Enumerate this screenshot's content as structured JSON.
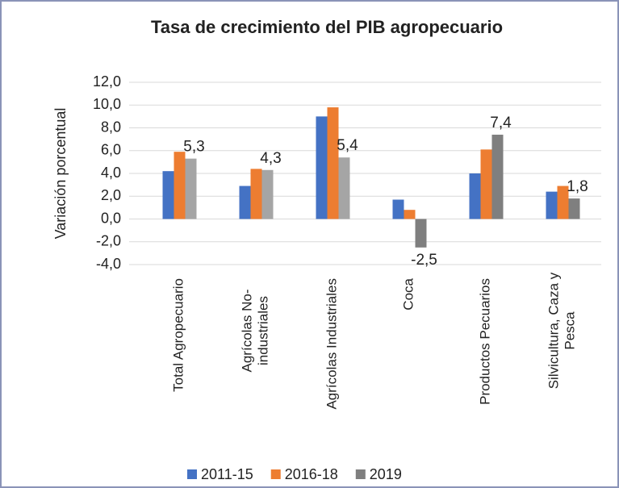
{
  "chart_data": {
    "type": "bar",
    "title": "Tasa de crecimiento del PIB agropecuario",
    "y_label": "Variación porcentual",
    "categories": [
      "Total Agropecuario",
      "Agrícolas No-industriales",
      "Agrícolas Industriales",
      "Coca",
      "Productos Pecuarios",
      "Silvicultura, Caza y Pesca"
    ],
    "series": [
      {
        "name": "2011-15",
        "color": "#4472c4",
        "values": [
          4.2,
          2.9,
          9.0,
          1.7,
          4.0,
          2.4
        ]
      },
      {
        "name": "2016-18",
        "color": "#ed7d31",
        "values": [
          5.9,
          4.4,
          9.8,
          0.8,
          6.1,
          2.9
        ]
      },
      {
        "name": "2019",
        "color": "#7f7f7f",
        "colors": [
          "#a5a5a5",
          "#a5a5a5",
          "#a5a5a5",
          "#7f7f7f",
          "#7f7f7f",
          "#7f7f7f"
        ],
        "values": [
          5.3,
          4.3,
          5.4,
          -2.5,
          7.4,
          1.8
        ],
        "value_labels": [
          "5,3",
          "4,3",
          "5,4",
          "-2,5",
          "7,4",
          "1,8"
        ]
      }
    ],
    "ylim": [
      -4,
      12
    ],
    "yticks": [
      {
        "value": -4,
        "label": "-4,0"
      },
      {
        "value": -2,
        "label": "-2,0"
      },
      {
        "value": 0,
        "label": "0,0"
      },
      {
        "value": 2,
        "label": "2,0"
      },
      {
        "value": 4,
        "label": "4,0"
      },
      {
        "value": 6,
        "label": "6,0"
      },
      {
        "value": 8,
        "label": "8,0"
      },
      {
        "value": 10,
        "label": "10,0"
      },
      {
        "value": 12,
        "label": "12,0"
      }
    ],
    "grid": true,
    "legend": "bottom"
  }
}
